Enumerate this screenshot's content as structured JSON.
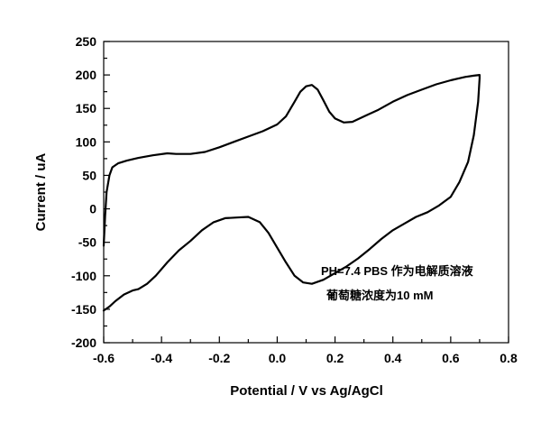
{
  "chart_data": {
    "type": "line",
    "xlabel": "Potential / V  vs Ag/AgCl",
    "ylabel": "Current / uA",
    "xlim": [
      -0.6,
      0.8
    ],
    "ylim": [
      -200,
      250
    ],
    "xticks": [
      "-0.6",
      "-0.4",
      "-0.2",
      "0.0",
      "0.2",
      "0.4",
      "0.6",
      "0.8"
    ],
    "yticks": [
      "-200",
      "-150",
      "-100",
      "-50",
      "0",
      "50",
      "100",
      "150",
      "200",
      "250"
    ],
    "grid": false,
    "legend": "none",
    "line_color": "#000000",
    "annotations": [
      "PH=7.4 PBS 作为电解质溶液",
      "葡萄糖浓度为10 mM"
    ],
    "series": [
      {
        "x": [
          -0.6,
          -0.595,
          -0.59,
          -0.58,
          -0.57,
          -0.55,
          -0.52,
          -0.48,
          -0.43,
          -0.38,
          -0.35,
          -0.3,
          -0.25,
          -0.2,
          -0.15,
          -0.1,
          -0.05,
          0.0,
          0.03,
          0.06,
          0.08,
          0.1,
          0.12,
          0.14,
          0.16,
          0.18,
          0.2,
          0.23,
          0.26,
          0.3,
          0.35,
          0.4,
          0.45,
          0.5,
          0.55,
          0.6,
          0.65,
          0.68,
          0.7,
          0.7,
          0.695,
          0.68,
          0.66,
          0.63,
          0.6,
          0.56,
          0.52,
          0.48,
          0.44,
          0.4,
          0.36,
          0.32,
          0.28,
          0.24,
          0.2,
          0.16,
          0.12,
          0.09,
          0.06,
          0.03,
          0.0,
          -0.03,
          -0.06,
          -0.1,
          -0.14,
          -0.18,
          -0.22,
          -0.26,
          -0.3,
          -0.34,
          -0.38,
          -0.42,
          -0.45,
          -0.48,
          -0.5,
          -0.53,
          -0.56,
          -0.58,
          -0.6
        ],
        "y": [
          -55,
          -10,
          25,
          50,
          62,
          68,
          72,
          76,
          80,
          83,
          82,
          82,
          85,
          92,
          100,
          108,
          116,
          126,
          138,
          160,
          175,
          183,
          185,
          178,
          162,
          145,
          135,
          129,
          130,
          138,
          148,
          160,
          170,
          178,
          186,
          192,
          197,
          199,
          200,
          195,
          160,
          110,
          70,
          40,
          18,
          5,
          -5,
          -12,
          -22,
          -32,
          -45,
          -60,
          -74,
          -86,
          -96,
          -106,
          -112,
          -110,
          -100,
          -80,
          -58,
          -36,
          -20,
          -12,
          -13,
          -14,
          -20,
          -32,
          -48,
          -62,
          -80,
          -100,
          -112,
          -120,
          -122,
          -128,
          -138,
          -146,
          -152
        ]
      }
    ]
  }
}
